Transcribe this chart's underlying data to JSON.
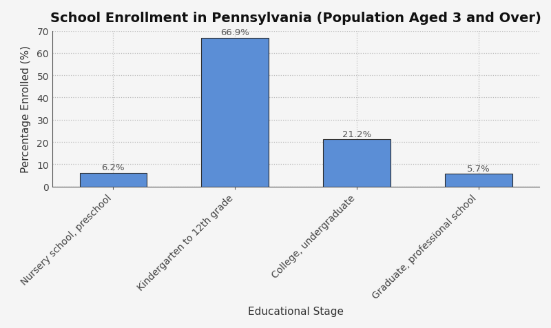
{
  "title": "School Enrollment in Pennsylvania (Population Aged 3 and Over)",
  "categories": [
    "Nursery school, preschool",
    "Kindergarten to 12th grade",
    "College, undergraduate",
    "Graduate, professional school"
  ],
  "values": [
    6.2,
    66.9,
    21.2,
    5.7
  ],
  "bar_color": "#5b8ed6",
  "bar_edgecolor": "#2b2b2b",
  "xlabel": "Educational Stage",
  "ylabel": "Percentage Enrolled (%)",
  "ylim": [
    0,
    70
  ],
  "yticks": [
    0,
    10,
    20,
    30,
    40,
    50,
    60,
    70
  ],
  "title_fontsize": 14,
  "label_fontsize": 11,
  "tick_fontsize": 10,
  "annotation_fontsize": 9.5,
  "annotation_color": "#555555",
  "background_color": "#f5f5f5",
  "grid_color": "#bbbbbb",
  "bar_width": 0.55
}
